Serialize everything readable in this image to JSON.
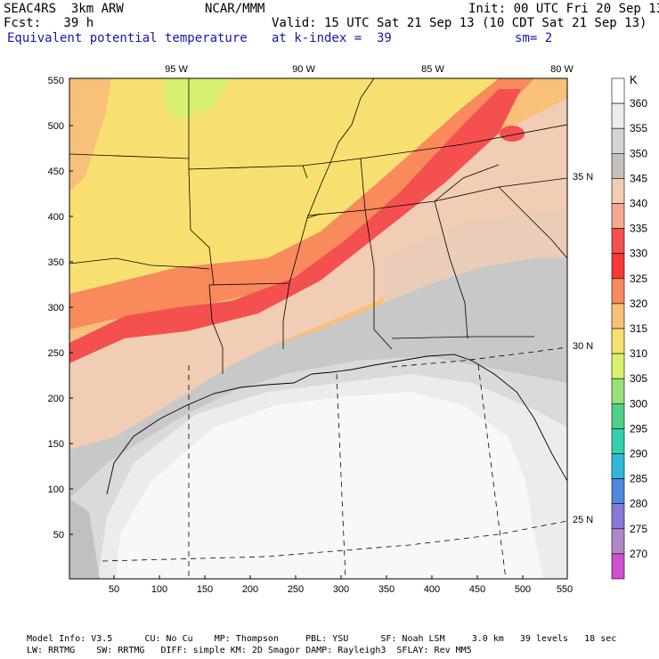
{
  "header": {
    "left_line1": "SEAC4RS  3km ARW",
    "left_line2": "Fcst:   39 h",
    "center_line1": "NCAR/MMM",
    "right_line1": "Init: 00 UTC Fri 20 Sep 13",
    "right_line2": "Valid: 15 UTC Sat 21 Sep 13 (10 CDT Sat 21 Sep 13)",
    "field_name": "Equivalent potential temperature",
    "level_text": "at k-index =  39",
    "smooth_text": "sm= 2"
  },
  "map": {
    "x_ticks": [
      "50",
      "100",
      "150",
      "200",
      "250",
      "300",
      "350",
      "400",
      "450",
      "500",
      "550"
    ],
    "y_ticks": [
      "50",
      "100",
      "150",
      "200",
      "250",
      "300",
      "350",
      "400",
      "450",
      "500",
      "550"
    ],
    "lon_labels": [
      "95 W",
      "90 W",
      "85 W",
      "80 W"
    ],
    "lat_labels": [
      "35 N",
      "30 N",
      "25 N"
    ]
  },
  "colorbar": {
    "unit": "K",
    "levels": [
      "360",
      "355",
      "350",
      "345",
      "340",
      "335",
      "330",
      "325",
      "320",
      "315",
      "310",
      "305",
      "300",
      "295",
      "290",
      "285",
      "280",
      "275",
      "270"
    ],
    "colors": [
      "#ffffff",
      "#ececec",
      "#d4d4d4",
      "#c8c0b8",
      "#f0cdb4",
      "#f4a890",
      "#f45050",
      "#f43838",
      "#f88a5c",
      "#f8c078",
      "#f8e070",
      "#d8f070",
      "#98e078",
      "#50d088",
      "#30d0b0",
      "#30b8d8",
      "#5088e0",
      "#8878d8",
      "#b088c8",
      "#d050d0"
    ]
  },
  "footer": {
    "line1": "Model Info: V3.5      CU: No Cu    MP: Thompson     PBL: YSU      SF: Noah LSM     3.0 km   39 levels   18 sec",
    "line2": "LW: RRTMG    SW: RRTMG   DIFF: simple KM: 2D Smagor DAMP: Rayleigh3  SFLAY: Rev MM5"
  }
}
